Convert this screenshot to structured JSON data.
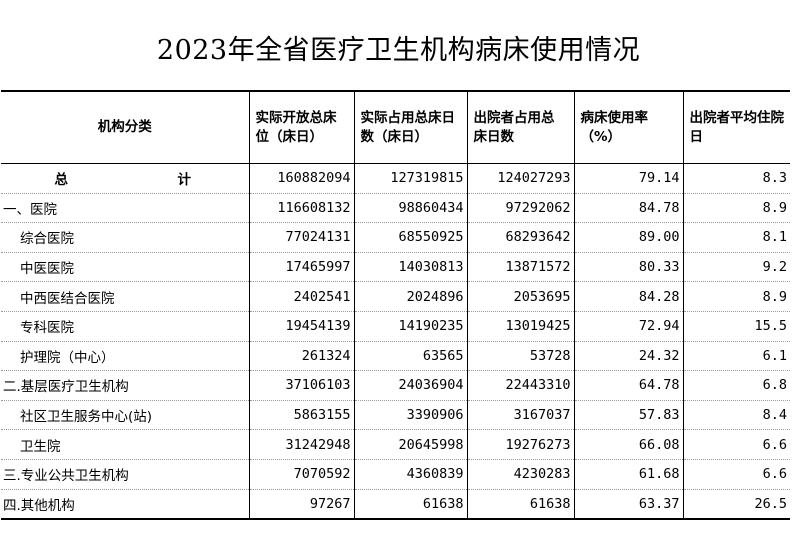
{
  "title": "2023年全省医疗卫生机构病床使用情况",
  "headers": [
    "机构分类",
    "实际开放总床位（床日）",
    "实际占用总床日数（床日）",
    "出院者占用总床日数",
    "病床使用率（%）",
    "出院者平均住院日"
  ],
  "rows": [
    {
      "label": "总　计",
      "kind": "total",
      "values": [
        "160882094",
        "127319815",
        "124027293",
        "79.14",
        "8.3"
      ]
    },
    {
      "label": "一、医院",
      "kind": "top",
      "values": [
        "116608132",
        "98860434",
        "97292062",
        "84.78",
        "8.9"
      ]
    },
    {
      "label": "综合医院",
      "kind": "sub",
      "values": [
        "77024131",
        "68550925",
        "68293642",
        "89.00",
        "8.1"
      ]
    },
    {
      "label": "中医医院",
      "kind": "sub",
      "values": [
        "17465997",
        "14030813",
        "13871572",
        "80.33",
        "9.2"
      ]
    },
    {
      "label": "中西医结合医院",
      "kind": "sub",
      "values": [
        "2402541",
        "2024896",
        "2053695",
        "84.28",
        "8.9"
      ]
    },
    {
      "label": "专科医院",
      "kind": "sub",
      "values": [
        "19454139",
        "14190235",
        "13019425",
        "72.94",
        "15.5"
      ]
    },
    {
      "label": "护理院（中心）",
      "kind": "sub",
      "values": [
        "261324",
        "63565",
        "53728",
        "24.32",
        "6.1"
      ]
    },
    {
      "label": "二.基层医疗卫生机构",
      "kind": "top",
      "values": [
        "37106103",
        "24036904",
        "22443310",
        "64.78",
        "6.8"
      ]
    },
    {
      "label": "社区卫生服务中心(站)",
      "kind": "sub",
      "values": [
        "5863155",
        "3390906",
        "3167037",
        "57.83",
        "8.4"
      ]
    },
    {
      "label": "卫生院",
      "kind": "sub",
      "values": [
        "31242948",
        "20645998",
        "19276273",
        "66.08",
        "6.6"
      ]
    },
    {
      "label": "三.专业公共卫生机构",
      "kind": "top",
      "values": [
        "7070592",
        "4360839",
        "4230283",
        "61.68",
        "6.6"
      ]
    },
    {
      "label": "四.其他机构",
      "kind": "top",
      "values": [
        "97267",
        "61638",
        "61638",
        "63.37",
        "26.5"
      ]
    }
  ]
}
